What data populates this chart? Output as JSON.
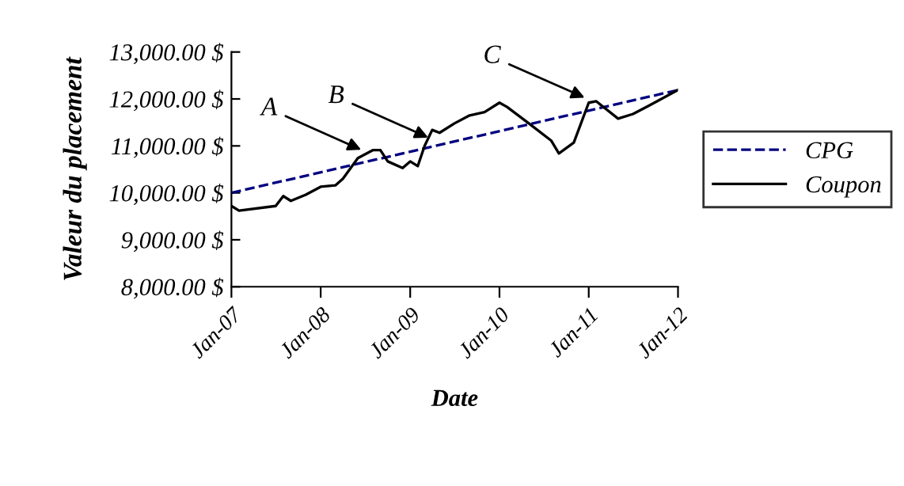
{
  "chart_data": {
    "type": "line",
    "xlabel": "Date",
    "ylabel": "Valeur du placement",
    "series": [
      {
        "name": "CPG",
        "color": "#000080",
        "line_style": "dashed",
        "x": [
          "2007-01",
          "2012-01"
        ],
        "values": [
          10000,
          12190
        ]
      },
      {
        "name": "Coupon",
        "color": "#000000",
        "line_style": "solid",
        "x": [
          "2007-01",
          "2007-02",
          "2007-07",
          "2007-08",
          "2007-09",
          "2007-11",
          "2008-01",
          "2008-03",
          "2008-04",
          "2008-06",
          "2008-08",
          "2008-09",
          "2008-10",
          "2008-12",
          "2009-01",
          "2009-02",
          "2009-03",
          "2009-04",
          "2009-05",
          "2009-07",
          "2009-09",
          "2009-11",
          "2010-01",
          "2010-02",
          "2010-05",
          "2010-08",
          "2010-09",
          "2010-11",
          "2011-01",
          "2011-02",
          "2011-05",
          "2011-07",
          "2011-09",
          "2012-01"
        ],
        "values": [
          9720,
          9620,
          9720,
          9930,
          9830,
          9960,
          10130,
          10160,
          10300,
          10740,
          10910,
          10910,
          10670,
          10530,
          10670,
          10570,
          11000,
          11340,
          11280,
          11480,
          11650,
          11720,
          11920,
          11830,
          11480,
          11110,
          10840,
          11070,
          11920,
          11950,
          11580,
          11680,
          11850,
          12190
        ]
      }
    ],
    "xlim": [
      "2007-01",
      "2012-01"
    ],
    "xticks": [
      {
        "value": "2007-01",
        "label": "Jan-07"
      },
      {
        "value": "2008-01",
        "label": "Jan-08"
      },
      {
        "value": "2009-01",
        "label": "Jan-09"
      },
      {
        "value": "2010-01",
        "label": "Jan-10"
      },
      {
        "value": "2011-01",
        "label": "Jan-11"
      },
      {
        "value": "2012-01",
        "label": "Jan-12"
      }
    ],
    "ylim": [
      8000,
      13000
    ],
    "yticks": [
      {
        "value": 8000,
        "label": "8,000.00 $"
      },
      {
        "value": 9000,
        "label": "9,000.00 $"
      },
      {
        "value": 10000,
        "label": "10,000.00 $"
      },
      {
        "value": 11000,
        "label": "11,000.00 $"
      },
      {
        "value": 12000,
        "label": "12,000.00 $"
      },
      {
        "value": 13000,
        "label": "13,000.00 $"
      }
    ],
    "annotations": [
      {
        "text": "A",
        "x": "2008-07",
        "y": 10880
      },
      {
        "text": "B",
        "x": "2009-04",
        "y": 11140
      },
      {
        "text": "C",
        "x": "2011-01",
        "y": 11990
      }
    ],
    "grid": false,
    "legend": "right",
    "marker": "none"
  }
}
